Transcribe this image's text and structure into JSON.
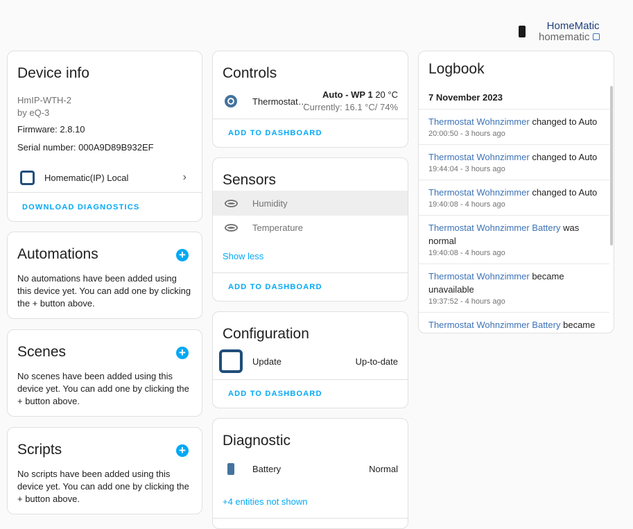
{
  "header": {
    "brand_top": "HomeMatic",
    "brand_bottom": "homematic",
    "battery_icon": "battery-icon"
  },
  "device_info": {
    "title": "Device info",
    "model": "HmIP-WTH-2",
    "manufacturer": "by eQ-3",
    "firmware": "Firmware: 2.8.10",
    "serial": "Serial number: 000A9D89B932EF",
    "integration": "Homematic(IP) Local",
    "download": "DOWNLOAD DIAGNOSTICS"
  },
  "automations": {
    "title": "Automations",
    "text": "No automations have been added using this device yet. You can add one by clicking the + button above."
  },
  "scenes": {
    "title": "Scenes",
    "text": "No scenes have been added using this device yet. You can add one by clicking the + button above."
  },
  "scripts": {
    "title": "Scripts",
    "text": "No scripts have been added using this device yet. You can add one by clicking the + button above."
  },
  "controls": {
    "title": "Controls",
    "entity": "Thermostat…",
    "state_bold": "Auto - WP 1",
    "state_temp": "20 °C",
    "current": "Currently: 16.1 °C/ 74%",
    "add": "ADD TO DASHBOARD"
  },
  "sensors": {
    "title": "Sensors",
    "items": [
      {
        "label": "Humidity"
      },
      {
        "label": "Temperature"
      }
    ],
    "show_less": "Show less",
    "add": "ADD TO DASHBOARD"
  },
  "configuration": {
    "title": "Configuration",
    "entity": "Update",
    "state": "Up-to-date",
    "add": "ADD TO DASHBOARD"
  },
  "diagnostic": {
    "title": "Diagnostic",
    "entity": "Battery",
    "state": "Normal",
    "more": "+4 entities not shown"
  },
  "logbook": {
    "title": "Logbook",
    "date": "7 November 2023",
    "entries": [
      {
        "name": "Thermostat Wohnzimmer",
        "action": "changed to Auto",
        "time": "20:00:50 - 3 hours ago"
      },
      {
        "name": "Thermostat Wohnzimmer",
        "action": "changed to Auto",
        "time": "19:44:04 - 3 hours ago"
      },
      {
        "name": "Thermostat Wohnzimmer",
        "action": "changed to Auto",
        "time": "19:40:08 - 4 hours ago"
      },
      {
        "name": "Thermostat Wohnzimmer Battery",
        "action": "was normal",
        "time": "19:40:08 - 4 hours ago"
      },
      {
        "name": "Thermostat Wohnzimmer",
        "action": "became unavailable",
        "time": "19:37:52 - 4 hours ago"
      },
      {
        "name": "Thermostat Wohnzimmer Battery",
        "action": "became",
        "time": ""
      }
    ]
  },
  "colors": {
    "accent": "#03a9f4",
    "icon_blue": "#44739e",
    "link": "#3d73b7"
  }
}
